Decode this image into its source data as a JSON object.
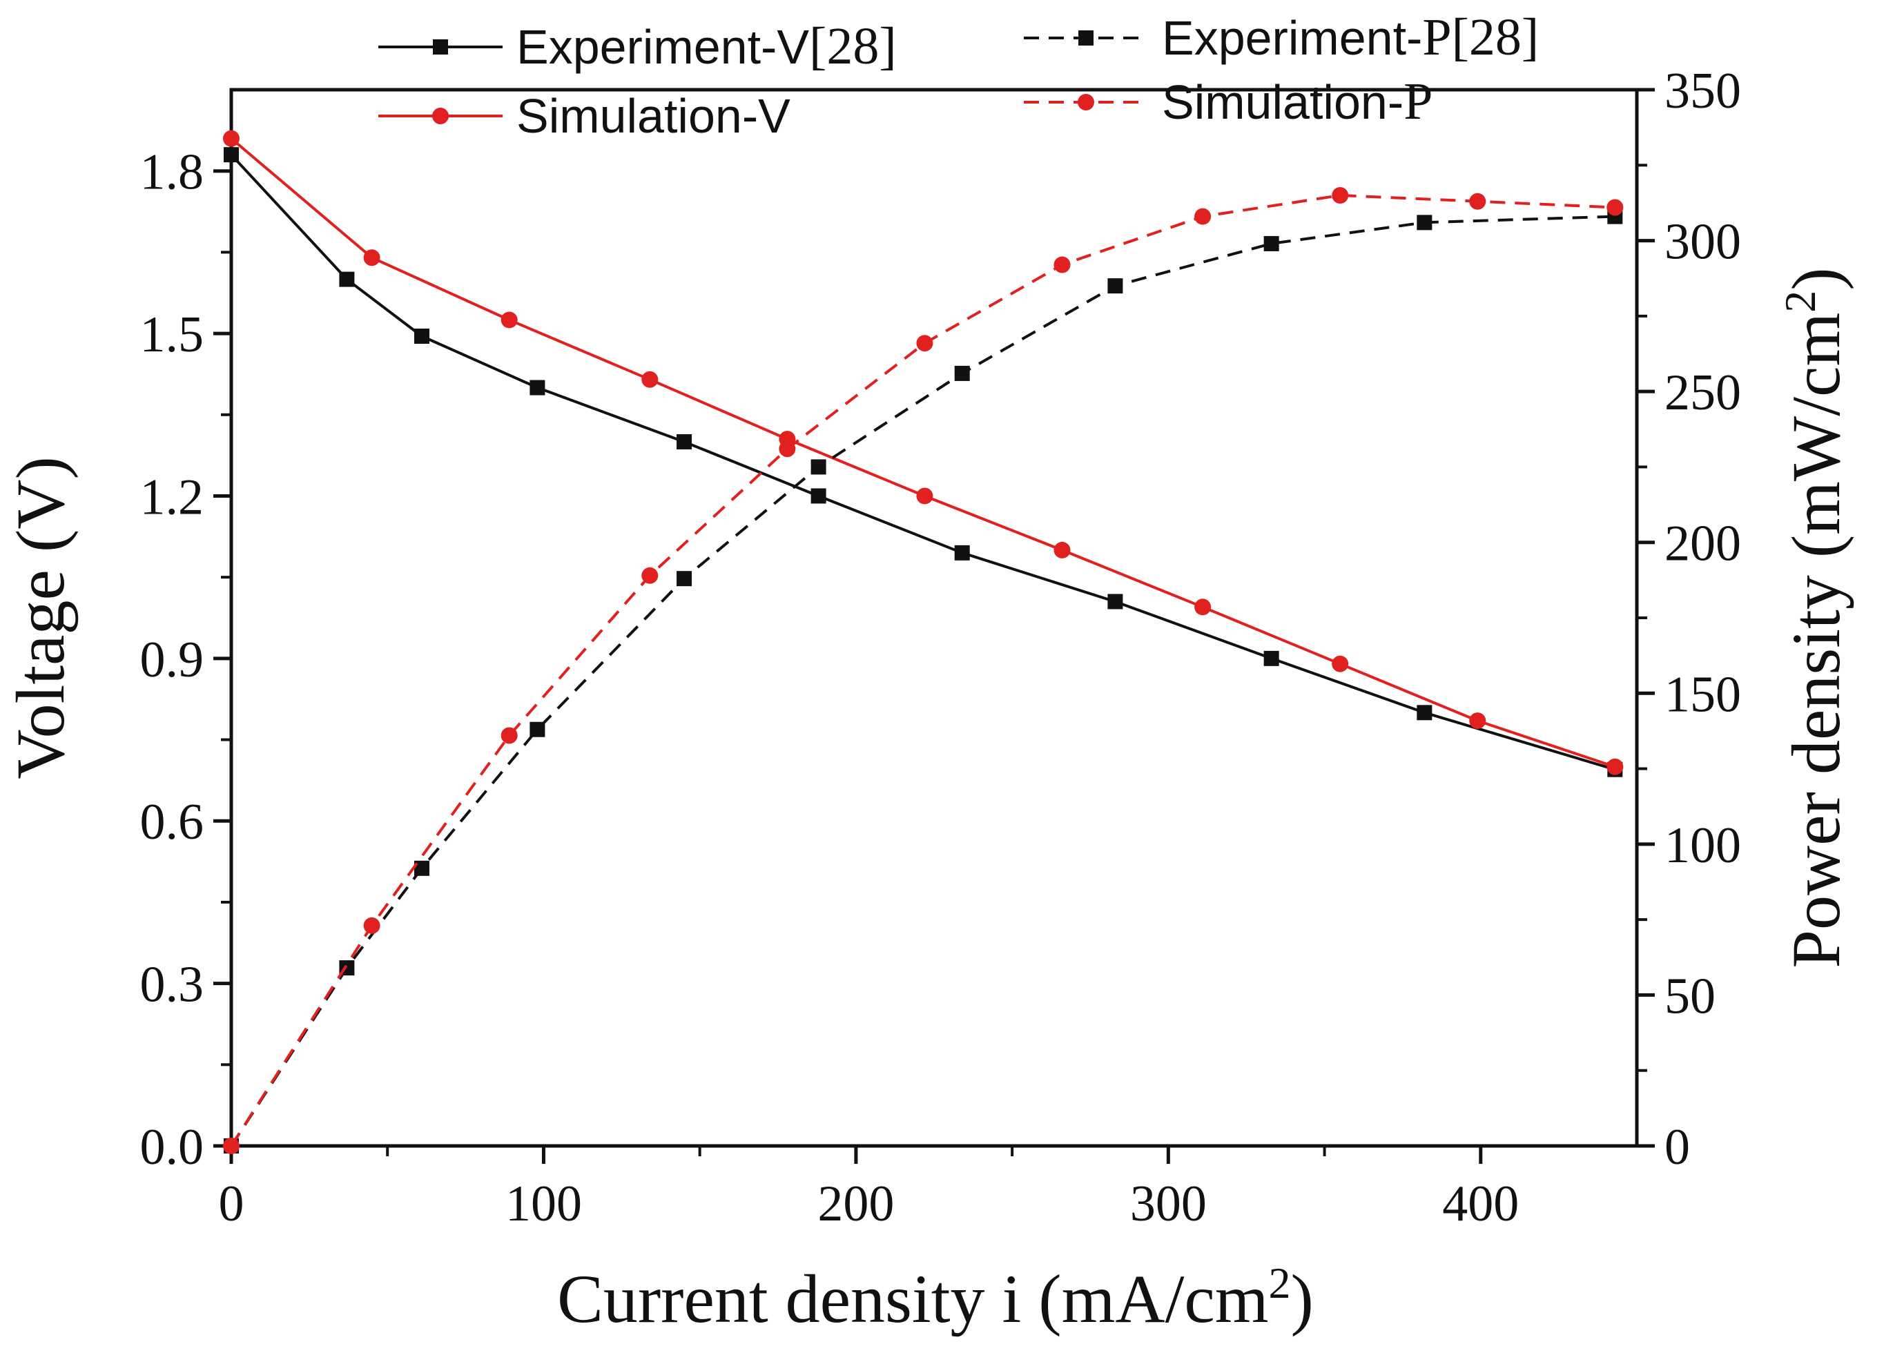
{
  "chart_data": {
    "type": "line",
    "xlabel": "Current density i (mA/cm",
    "xlabel_sup": "2",
    "xlabel_end": ")",
    "ylabel": "Voltage (V)",
    "y2label": "Power density (mW/cm",
    "y2label_sup": "2",
    "y2label_end": ")",
    "xlim": [
      0,
      450
    ],
    "ylim": [
      0,
      1.95
    ],
    "y2lim": [
      0,
      350
    ],
    "xticks": [
      "0",
      "100",
      "200",
      "300",
      "400"
    ],
    "xtick_values": [
      0,
      100,
      200,
      300,
      400
    ],
    "yticks": [
      "0.0",
      "0.3",
      "0.6",
      "0.9",
      "1.2",
      "1.5",
      "1.8"
    ],
    "ytick_values": [
      0,
      0.3,
      0.6,
      0.9,
      1.2,
      1.5,
      1.8
    ],
    "y2ticks": [
      "0",
      "50",
      "100",
      "150",
      "200",
      "250",
      "300",
      "350"
    ],
    "y2tick_values": [
      0,
      50,
      100,
      150,
      200,
      250,
      300,
      350
    ],
    "grid": false,
    "legend_placement": "top",
    "series": [
      {
        "name": "Experiment-V",
        "name_suffix": "[28]",
        "axis": "left",
        "style": "solid",
        "marker": "square",
        "color": "#111111",
        "x": [
          0,
          37,
          61,
          98,
          145,
          188,
          234,
          283,
          333,
          382,
          443
        ],
        "y": [
          1.83,
          1.6,
          1.495,
          1.4,
          1.3,
          1.2,
          1.095,
          1.005,
          0.9,
          0.8,
          0.695
        ]
      },
      {
        "name": "Simulation-V",
        "name_suffix": "",
        "axis": "left",
        "style": "solid",
        "marker": "circle",
        "color": "#e0211f",
        "x": [
          0,
          45,
          89,
          134,
          178,
          222,
          266,
          311,
          355,
          399,
          443
        ],
        "y": [
          1.86,
          1.64,
          1.525,
          1.415,
          1.305,
          1.2,
          1.1,
          0.995,
          0.89,
          0.785,
          0.7
        ]
      },
      {
        "name": "Experiment-",
        "name_suffix": "P[28]",
        "axis": "right",
        "style": "dashed",
        "marker": "square",
        "color": "#111111",
        "x": [
          0,
          37,
          61,
          98,
          145,
          188,
          234,
          283,
          333,
          382,
          443
        ],
        "y": [
          0,
          59,
          92,
          138,
          188,
          225,
          256,
          285,
          299,
          306,
          308
        ]
      },
      {
        "name": "Simulation-",
        "name_suffix": "P",
        "axis": "right",
        "style": "dashed",
        "marker": "circle",
        "color": "#e0211f",
        "x": [
          0,
          45,
          89,
          134,
          178,
          222,
          266,
          311,
          355,
          399,
          443
        ],
        "y": [
          0,
          73,
          136,
          189,
          231,
          266,
          292,
          308,
          315,
          313,
          311
        ]
      }
    ]
  }
}
